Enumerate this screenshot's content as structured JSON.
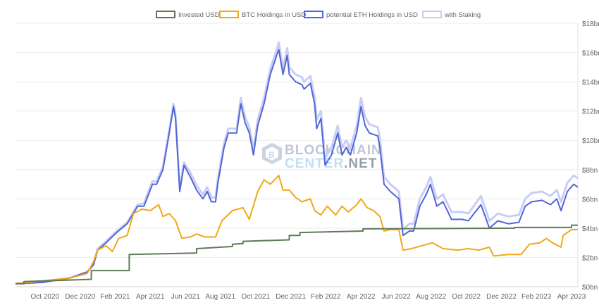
{
  "chart_data": {
    "type": "line",
    "title": "",
    "xlabel": "",
    "ylabel": "",
    "x_units": "decimal year",
    "xlim": [
      2020.61,
      2023.28
    ],
    "ylim": [
      0,
      18
    ],
    "grid": true,
    "legend_position": "top-center",
    "y_axis_side": "right",
    "y_ticks": [
      0,
      2,
      4,
      6,
      8,
      10,
      12,
      14,
      16,
      18
    ],
    "y_tick_labels": [
      "$0bn",
      "$2bn",
      "$4bn",
      "$6bn",
      "$8bn",
      "$10bn",
      "$12bn",
      "$14bn",
      "$16bn",
      "$18bn"
    ],
    "x_ticks": [
      2020.75,
      2020.917,
      2021.083,
      2021.25,
      2021.417,
      2021.583,
      2021.75,
      2021.917,
      2022.083,
      2022.25,
      2022.417,
      2022.583,
      2022.75,
      2022.917,
      2023.083,
      2023.25
    ],
    "x_tick_labels": [
      "Oct 2020",
      "Dec 2020",
      "Feb 2021",
      "Apr 2021",
      "Jun 2021",
      "Aug 2021",
      "Oct 2021",
      "Dec 2021",
      "Feb 2022",
      "Apr 2022",
      "Jun 2022",
      "Aug 2022",
      "Oct 2022",
      "Dec 2022",
      "Feb 2023",
      "Apr 2023"
    ],
    "watermark": "BLOCKCHAIN CENTER.NET",
    "series": [
      {
        "name": "with Staking",
        "color": "#c9cdf5",
        "points": [
          [
            2020.61,
            0.2
          ],
          [
            2020.74,
            0.3
          ],
          [
            2020.87,
            0.6
          ],
          [
            2020.95,
            1.0
          ],
          [
            2020.98,
            1.5
          ],
          [
            2021.0,
            2.6
          ],
          [
            2021.04,
            3.1
          ],
          [
            2021.09,
            3.8
          ],
          [
            2021.14,
            4.4
          ],
          [
            2021.19,
            5.6
          ],
          [
            2021.22,
            5.7
          ],
          [
            2021.26,
            7.2
          ],
          [
            2021.28,
            7.2
          ],
          [
            2021.31,
            8.2
          ],
          [
            2021.34,
            10.7
          ],
          [
            2021.36,
            12.5
          ],
          [
            2021.37,
            11.7
          ],
          [
            2021.39,
            6.8
          ],
          [
            2021.41,
            8.5
          ],
          [
            2021.44,
            7.8
          ],
          [
            2021.47,
            6.9
          ],
          [
            2021.5,
            6.3
          ],
          [
            2021.52,
            6.8
          ],
          [
            2021.54,
            6.1
          ],
          [
            2021.56,
            6.1
          ],
          [
            2021.57,
            7.3
          ],
          [
            2021.6,
            9.8
          ],
          [
            2021.62,
            10.8
          ],
          [
            2021.66,
            10.8
          ],
          [
            2021.68,
            12.9
          ],
          [
            2021.7,
            11.6
          ],
          [
            2021.72,
            10.9
          ],
          [
            2021.74,
            9.4
          ],
          [
            2021.76,
            11.4
          ],
          [
            2021.79,
            12.9
          ],
          [
            2021.82,
            14.9
          ],
          [
            2021.85,
            16.2
          ],
          [
            2021.86,
            16.7
          ],
          [
            2021.88,
            14.9
          ],
          [
            2021.9,
            16.3
          ],
          [
            2021.91,
            15.0
          ],
          [
            2021.94,
            14.5
          ],
          [
            2021.97,
            14.3
          ],
          [
            2021.98,
            14.0
          ],
          [
            2022.01,
            14.4
          ],
          [
            2022.03,
            13.0
          ],
          [
            2022.04,
            11.4
          ],
          [
            2022.06,
            12.0
          ],
          [
            2022.08,
            8.8
          ],
          [
            2022.11,
            9.5
          ],
          [
            2022.14,
            11.0
          ],
          [
            2022.16,
            9.5
          ],
          [
            2022.18,
            10.0
          ],
          [
            2022.2,
            9.5
          ],
          [
            2022.23,
            11.0
          ],
          [
            2022.25,
            12.9
          ],
          [
            2022.27,
            11.6
          ],
          [
            2022.29,
            11.1
          ],
          [
            2022.33,
            10.9
          ],
          [
            2022.34,
            10.1
          ],
          [
            2022.36,
            7.5
          ],
          [
            2022.39,
            7.0
          ],
          [
            2022.43,
            6.5
          ],
          [
            2022.45,
            3.9
          ],
          [
            2022.48,
            4.3
          ],
          [
            2022.5,
            4.3
          ],
          [
            2022.53,
            6.0
          ],
          [
            2022.56,
            6.8
          ],
          [
            2022.58,
            7.5
          ],
          [
            2022.61,
            6.0
          ],
          [
            2022.64,
            6.3
          ],
          [
            2022.68,
            5.1
          ],
          [
            2022.73,
            5.1
          ],
          [
            2022.76,
            5.0
          ],
          [
            2022.82,
            6.2
          ],
          [
            2022.86,
            4.5
          ],
          [
            2022.9,
            5.0
          ],
          [
            2022.95,
            4.8
          ],
          [
            2023.0,
            4.9
          ],
          [
            2023.03,
            6.0
          ],
          [
            2023.06,
            6.4
          ],
          [
            2023.11,
            6.5
          ],
          [
            2023.15,
            6.2
          ],
          [
            2023.18,
            6.6
          ],
          [
            2023.2,
            5.8
          ],
          [
            2023.23,
            7.1
          ],
          [
            2023.26,
            7.6
          ],
          [
            2023.28,
            7.4
          ]
        ]
      },
      {
        "name": "potential ETH Holdings in USD",
        "color": "#5166d6",
        "points": [
          [
            2020.61,
            0.2
          ],
          [
            2020.74,
            0.3
          ],
          [
            2020.87,
            0.6
          ],
          [
            2020.95,
            1.0
          ],
          [
            2020.98,
            1.5
          ],
          [
            2021.0,
            2.5
          ],
          [
            2021.04,
            3.0
          ],
          [
            2021.09,
            3.7
          ],
          [
            2021.14,
            4.3
          ],
          [
            2021.19,
            5.5
          ],
          [
            2021.22,
            5.5
          ],
          [
            2021.26,
            7.0
          ],
          [
            2021.28,
            7.0
          ],
          [
            2021.31,
            8.0
          ],
          [
            2021.34,
            10.5
          ],
          [
            2021.36,
            12.3
          ],
          [
            2021.37,
            11.5
          ],
          [
            2021.39,
            6.5
          ],
          [
            2021.41,
            8.3
          ],
          [
            2021.44,
            7.5
          ],
          [
            2021.47,
            6.6
          ],
          [
            2021.5,
            6.0
          ],
          [
            2021.52,
            6.5
          ],
          [
            2021.54,
            5.8
          ],
          [
            2021.56,
            5.8
          ],
          [
            2021.57,
            7.0
          ],
          [
            2021.6,
            9.5
          ],
          [
            2021.62,
            10.5
          ],
          [
            2021.66,
            10.5
          ],
          [
            2021.68,
            12.5
          ],
          [
            2021.7,
            11.2
          ],
          [
            2021.72,
            10.5
          ],
          [
            2021.74,
            9.0
          ],
          [
            2021.76,
            11.0
          ],
          [
            2021.79,
            12.5
          ],
          [
            2021.82,
            14.5
          ],
          [
            2021.85,
            15.8
          ],
          [
            2021.86,
            16.2
          ],
          [
            2021.88,
            14.5
          ],
          [
            2021.9,
            15.8
          ],
          [
            2021.91,
            14.5
          ],
          [
            2021.94,
            14.0
          ],
          [
            2021.97,
            13.8
          ],
          [
            2021.98,
            13.5
          ],
          [
            2022.01,
            13.9
          ],
          [
            2022.03,
            12.5
          ],
          [
            2022.04,
            10.8
          ],
          [
            2022.06,
            11.5
          ],
          [
            2022.08,
            8.3
          ],
          [
            2022.11,
            9.0
          ],
          [
            2022.14,
            10.5
          ],
          [
            2022.16,
            9.0
          ],
          [
            2022.18,
            9.5
          ],
          [
            2022.2,
            9.0
          ],
          [
            2022.23,
            10.5
          ],
          [
            2022.25,
            12.3
          ],
          [
            2022.27,
            11.0
          ],
          [
            2022.29,
            10.5
          ],
          [
            2022.33,
            10.3
          ],
          [
            2022.34,
            9.5
          ],
          [
            2022.36,
            7.0
          ],
          [
            2022.39,
            6.5
          ],
          [
            2022.43,
            6.0
          ],
          [
            2022.45,
            3.5
          ],
          [
            2022.48,
            3.8
          ],
          [
            2022.5,
            3.8
          ],
          [
            2022.53,
            5.5
          ],
          [
            2022.56,
            6.3
          ],
          [
            2022.58,
            7.0
          ],
          [
            2022.61,
            5.5
          ],
          [
            2022.64,
            5.8
          ],
          [
            2022.68,
            4.6
          ],
          [
            2022.73,
            4.6
          ],
          [
            2022.76,
            4.5
          ],
          [
            2022.82,
            5.6
          ],
          [
            2022.86,
            4.0
          ],
          [
            2022.9,
            4.5
          ],
          [
            2022.95,
            4.3
          ],
          [
            2023.0,
            4.4
          ],
          [
            2023.03,
            5.5
          ],
          [
            2023.06,
            5.8
          ],
          [
            2023.11,
            5.9
          ],
          [
            2023.15,
            5.6
          ],
          [
            2023.18,
            6.0
          ],
          [
            2023.2,
            5.2
          ],
          [
            2023.23,
            6.5
          ],
          [
            2023.26,
            7.0
          ],
          [
            2023.28,
            6.8
          ]
        ]
      },
      {
        "name": "BTC Holdings in USD",
        "color": "#f0a818",
        "points": [
          [
            2020.61,
            0.2
          ],
          [
            2020.74,
            0.4
          ],
          [
            2020.87,
            0.6
          ],
          [
            2020.95,
            0.9
          ],
          [
            2020.98,
            1.7
          ],
          [
            2021.0,
            2.5
          ],
          [
            2021.04,
            2.8
          ],
          [
            2021.07,
            2.4
          ],
          [
            2021.1,
            3.3
          ],
          [
            2021.14,
            3.5
          ],
          [
            2021.17,
            5.0
          ],
          [
            2021.21,
            5.3
          ],
          [
            2021.25,
            5.2
          ],
          [
            2021.29,
            5.6
          ],
          [
            2021.31,
            4.8
          ],
          [
            2021.34,
            5.0
          ],
          [
            2021.37,
            4.5
          ],
          [
            2021.4,
            3.3
          ],
          [
            2021.44,
            3.4
          ],
          [
            2021.47,
            3.6
          ],
          [
            2021.51,
            3.4
          ],
          [
            2021.56,
            3.4
          ],
          [
            2021.59,
            4.5
          ],
          [
            2021.64,
            5.2
          ],
          [
            2021.69,
            5.4
          ],
          [
            2021.72,
            4.6
          ],
          [
            2021.76,
            6.5
          ],
          [
            2021.79,
            7.3
          ],
          [
            2021.82,
            7.0
          ],
          [
            2021.86,
            7.6
          ],
          [
            2021.88,
            6.6
          ],
          [
            2021.91,
            6.6
          ],
          [
            2021.94,
            6.1
          ],
          [
            2021.97,
            5.8
          ],
          [
            2022.01,
            6.0
          ],
          [
            2022.03,
            5.2
          ],
          [
            2022.06,
            4.9
          ],
          [
            2022.09,
            5.5
          ],
          [
            2022.13,
            4.9
          ],
          [
            2022.16,
            5.5
          ],
          [
            2022.19,
            5.1
          ],
          [
            2022.23,
            5.6
          ],
          [
            2022.25,
            6.0
          ],
          [
            2022.28,
            5.4
          ],
          [
            2022.31,
            5.2
          ],
          [
            2022.34,
            4.8
          ],
          [
            2022.36,
            3.8
          ],
          [
            2022.39,
            3.9
          ],
          [
            2022.43,
            3.9
          ],
          [
            2022.45,
            2.5
          ],
          [
            2022.49,
            2.6
          ],
          [
            2022.54,
            2.8
          ],
          [
            2022.59,
            3.0
          ],
          [
            2022.64,
            2.6
          ],
          [
            2022.71,
            2.5
          ],
          [
            2022.76,
            2.6
          ],
          [
            2022.81,
            2.5
          ],
          [
            2022.86,
            2.7
          ],
          [
            2022.88,
            2.1
          ],
          [
            2022.95,
            2.2
          ],
          [
            2023.01,
            2.2
          ],
          [
            2023.05,
            2.9
          ],
          [
            2023.1,
            3.0
          ],
          [
            2023.13,
            3.3
          ],
          [
            2023.16,
            3.0
          ],
          [
            2023.2,
            2.7
          ],
          [
            2023.21,
            3.5
          ],
          [
            2023.25,
            3.9
          ],
          [
            2023.28,
            3.9
          ]
        ]
      },
      {
        "name": "Invested USD",
        "color": "#5e7a58",
        "points": [
          [
            2020.61,
            0.2
          ],
          [
            2020.65,
            0.2
          ],
          [
            2020.65,
            0.35
          ],
          [
            2020.97,
            0.5
          ],
          [
            2020.97,
            1.1
          ],
          [
            2021.15,
            1.1
          ],
          [
            2021.15,
            2.2
          ],
          [
            2021.47,
            2.3
          ],
          [
            2021.47,
            2.6
          ],
          [
            2021.64,
            2.75
          ],
          [
            2021.64,
            2.9
          ],
          [
            2021.69,
            2.95
          ],
          [
            2021.69,
            3.1
          ],
          [
            2021.91,
            3.2
          ],
          [
            2021.91,
            3.5
          ],
          [
            2021.96,
            3.5
          ],
          [
            2021.96,
            3.7
          ],
          [
            2022.26,
            3.8
          ],
          [
            2022.26,
            3.95
          ],
          [
            2022.98,
            4.0
          ],
          [
            2022.98,
            4.05
          ],
          [
            2023.25,
            4.05
          ],
          [
            2023.25,
            4.2
          ],
          [
            2023.28,
            4.2
          ]
        ]
      }
    ],
    "legend": [
      {
        "label": "Invested USD",
        "color": "#5e7a58"
      },
      {
        "label": "BTC Holdings in USD",
        "color": "#f0a818"
      },
      {
        "label": "potential ETH Holdings in USD",
        "color": "#5166d6"
      },
      {
        "label": "with Staking",
        "color": "#c9cdf5"
      }
    ]
  }
}
